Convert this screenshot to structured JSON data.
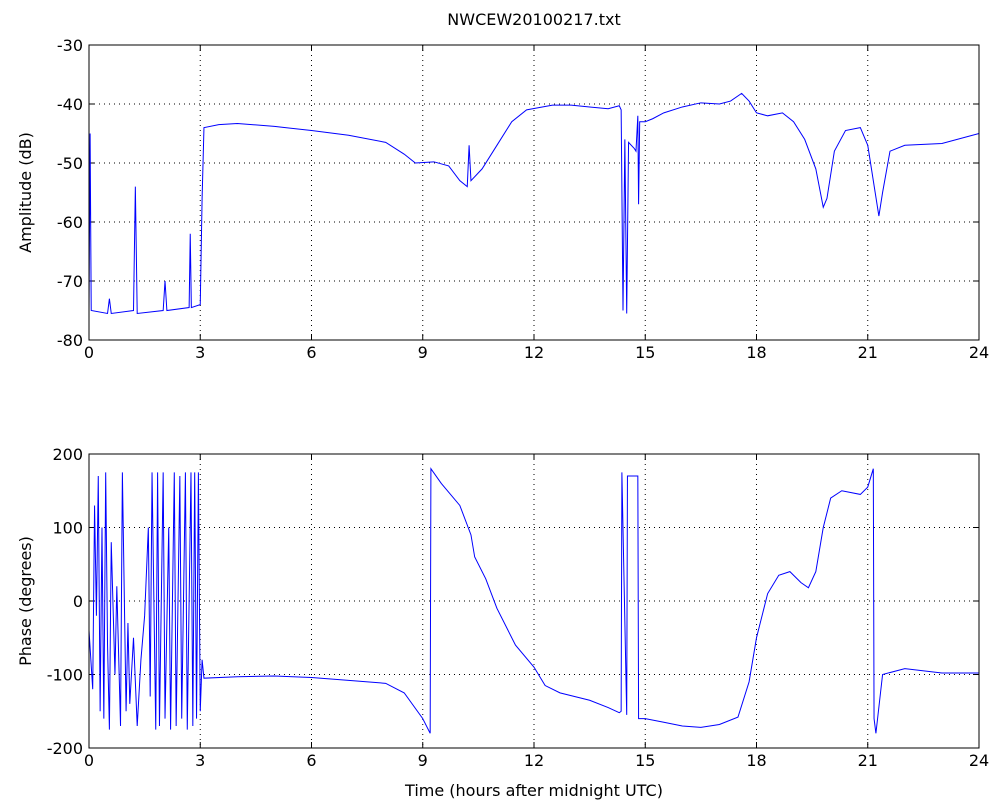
{
  "chart_data": [
    {
      "type": "line",
      "title": "NWCEW20100217.txt",
      "ylabel": "Amplitude (dB)",
      "grid": true,
      "xlim": [
        0,
        24
      ],
      "xticks": [
        0,
        3,
        6,
        9,
        12,
        15,
        18,
        21,
        24
      ],
      "ylim": [
        -80,
        -30
      ],
      "yticks": [
        -80,
        -70,
        -60,
        -50,
        -40,
        -30
      ],
      "x": [
        0,
        0.03,
        0.06,
        0.5,
        0.55,
        0.6,
        1.2,
        1.25,
        1.3,
        2.0,
        2.05,
        2.1,
        2.7,
        2.73,
        2.76,
        3.0,
        3.05,
        3.1,
        3.5,
        4.0,
        5.0,
        6.0,
        7.0,
        8.0,
        8.5,
        8.8,
        9.3,
        9.7,
        10.0,
        10.2,
        10.25,
        10.3,
        10.6,
        11.0,
        11.4,
        11.8,
        12.5,
        13.0,
        13.5,
        14.0,
        14.3,
        14.35,
        14.4,
        14.45,
        14.5,
        14.55,
        14.7,
        14.75,
        14.8,
        14.82,
        14.85,
        15.0,
        15.2,
        15.5,
        16.0,
        16.5,
        17.0,
        17.3,
        17.6,
        17.8,
        18.0,
        18.3,
        18.7,
        19.0,
        19.3,
        19.6,
        19.8,
        19.9,
        20.1,
        20.4,
        20.8,
        21.0,
        21.2,
        21.3,
        21.4,
        21.6,
        22.0,
        23.0,
        24.0
      ],
      "series": [
        {
          "color": "#0000ff",
          "values": [
            -75,
            -45,
            -75,
            -75.5,
            -73,
            -75.5,
            -75,
            -54,
            -75.5,
            -75,
            -70,
            -75,
            -74.5,
            -62,
            -74.5,
            -74,
            -56,
            -44,
            -43.5,
            -43.3,
            -43.8,
            -44.5,
            -45.3,
            -46.5,
            -48.5,
            -50,
            -49.8,
            -50.5,
            -53,
            -54,
            -47,
            -53,
            -51,
            -47,
            -43,
            -41,
            -40.2,
            -40.2,
            -40.5,
            -40.8,
            -40.3,
            -41,
            -75,
            -46,
            -75.5,
            -46.5,
            -47.5,
            -48,
            -42,
            -57,
            -43,
            -43,
            -42.5,
            -41.5,
            -40.5,
            -39.8,
            -40,
            -39.5,
            -38.2,
            -39.5,
            -41.5,
            -42,
            -41.5,
            -43,
            -46,
            -51,
            -57.5,
            -56,
            -48,
            -44.5,
            -44,
            -47,
            -55,
            -59,
            -55,
            -48,
            -47,
            -46.7,
            -45
          ]
        }
      ]
    },
    {
      "type": "line",
      "xlabel": "Time (hours after midnight UTC)",
      "ylabel": "Phase (degrees)",
      "grid": true,
      "xlim": [
        0,
        24
      ],
      "xticks": [
        0,
        3,
        6,
        9,
        12,
        15,
        18,
        21,
        24
      ],
      "ylim": [
        -200,
        200
      ],
      "yticks": [
        -200,
        -100,
        0,
        100,
        200
      ],
      "x": [
        0,
        0.1,
        0.15,
        0.2,
        0.25,
        0.3,
        0.35,
        0.4,
        0.45,
        0.5,
        0.55,
        0.6,
        0.7,
        0.75,
        0.85,
        0.9,
        1.0,
        1.05,
        1.1,
        1.2,
        1.3,
        1.4,
        1.5,
        1.6,
        1.65,
        1.7,
        1.8,
        1.85,
        1.9,
        2.0,
        2.05,
        2.15,
        2.2,
        2.3,
        2.35,
        2.45,
        2.5,
        2.6,
        2.65,
        2.75,
        2.8,
        2.85,
        2.9,
        2.95,
        3.0,
        3.05,
        3.1,
        4,
        5,
        6,
        7,
        8,
        8.5,
        9.0,
        9.2,
        9.22,
        9.5,
        10,
        10.3,
        10.4,
        10.7,
        11,
        11.5,
        12,
        12.3,
        12.7,
        13.5,
        14,
        14.3,
        14.35,
        14.37,
        14.5,
        14.52,
        14.8,
        14.82,
        15,
        15.5,
        16,
        16.5,
        17,
        17.5,
        17.8,
        18,
        18.3,
        18.6,
        18.9,
        19.2,
        19.4,
        19.6,
        19.8,
        20,
        20.3,
        20.8,
        21,
        21.15,
        21.17,
        21.22,
        21.4,
        22,
        23,
        24
      ],
      "series": [
        {
          "color": "#0000ff",
          "values": [
            -40,
            -120,
            130,
            -20,
            170,
            -150,
            100,
            -160,
            175,
            -60,
            -175,
            80,
            -100,
            20,
            -170,
            175,
            -150,
            -30,
            -140,
            -50,
            -170,
            -80,
            -20,
            100,
            -130,
            175,
            -175,
            175,
            -170,
            175,
            -160,
            100,
            -175,
            175,
            -170,
            170,
            -160,
            175,
            -175,
            175,
            -170,
            175,
            -160,
            175,
            -150,
            -80,
            -105,
            -103,
            -102,
            -104,
            -108,
            -112,
            -125,
            -160,
            -180,
            180,
            160,
            130,
            90,
            60,
            30,
            -10,
            -60,
            -90,
            -115,
            -125,
            -135,
            -145,
            -152,
            -150,
            175,
            -155,
            170,
            170,
            -160,
            -160,
            -165,
            -170,
            -172,
            -168,
            -158,
            -110,
            -50,
            10,
            35,
            40,
            25,
            18,
            40,
            100,
            140,
            150,
            145,
            155,
            180,
            -160,
            -180,
            -100,
            -92,
            -98,
            -98
          ]
        }
      ]
    }
  ]
}
